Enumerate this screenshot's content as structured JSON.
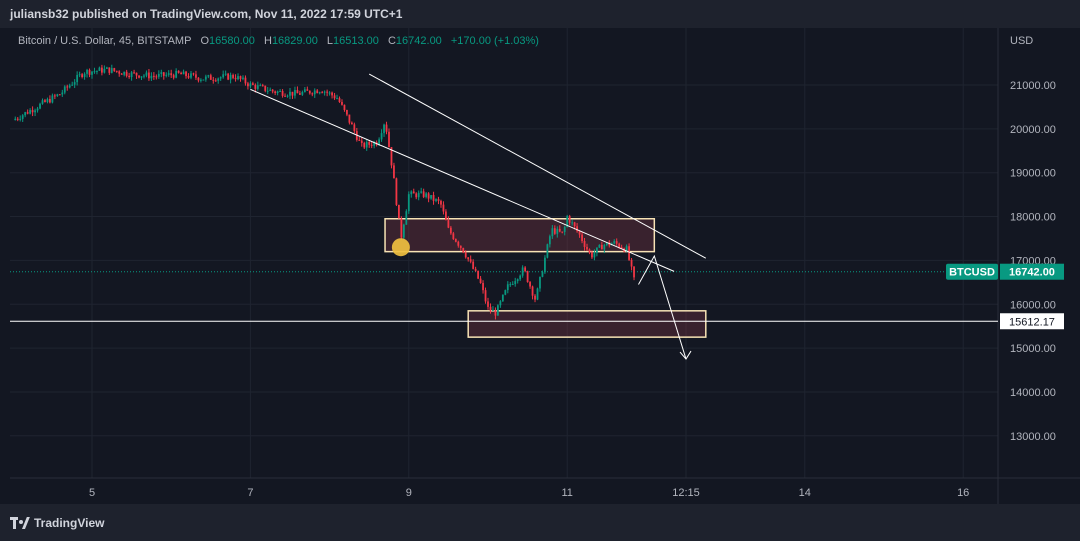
{
  "header": {
    "published_line": "juliansb32 published on TradingView.com, Nov 11, 2022 17:59 UTC+1"
  },
  "legend": {
    "symbol": "Bitcoin / U.S. Dollar, 45, BITSTAMP",
    "o_key": "O",
    "o_val": "16580.00",
    "h_key": "H",
    "h_val": "16829.00",
    "l_key": "L",
    "l_val": "16513.00",
    "c_key": "C",
    "c_val": "16742.00",
    "change": "+170.00 (+1.03%)"
  },
  "axis": {
    "currency": "USD",
    "y_ticks": [
      "21000.00",
      "20000.00",
      "19000.00",
      "18000.00",
      "17000.00",
      "16000.00",
      "15000.00",
      "14000.00",
      "13000.00"
    ],
    "x_ticks": [
      "5",
      "7",
      "9",
      "11",
      "12:15",
      "14",
      "16"
    ]
  },
  "price_tag": {
    "symbol": "BTCUSD",
    "value": "16742.00"
  },
  "level_tag": {
    "value": "15612.17"
  },
  "footer": {
    "brand": "TradingView",
    "logo_icon": "tradingview-logo-icon"
  },
  "colors": {
    "up": "#089981",
    "down": "#f23645",
    "zone_border": "#f7e3b5",
    "marker": "#f0c040",
    "background": "#131722"
  },
  "chart_data": {
    "type": "candlestick",
    "title": "",
    "ylim": [
      12300,
      21800
    ],
    "x_tick_labels": [
      "5",
      "7",
      "9",
      "11",
      "12:15",
      "14",
      "16"
    ],
    "current_price": 16742,
    "horizontal_level": 15612.17,
    "price_path": [
      [
        4.0,
        20200
      ],
      [
        4.3,
        20500
      ],
      [
        4.6,
        20800
      ],
      [
        4.9,
        21300
      ],
      [
        5.2,
        21350
      ],
      [
        5.5,
        21250
      ],
      [
        5.8,
        21200
      ],
      [
        6.1,
        21250
      ],
      [
        6.4,
        21150
      ],
      [
        6.8,
        21200
      ],
      [
        7.0,
        21000
      ],
      [
        7.3,
        20850
      ],
      [
        7.6,
        20800
      ],
      [
        7.9,
        20900
      ],
      [
        8.1,
        20700
      ],
      [
        8.3,
        20000
      ],
      [
        8.4,
        19600
      ],
      [
        8.6,
        19700
      ],
      [
        8.7,
        20200
      ],
      [
        8.8,
        19000
      ],
      [
        8.9,
        17500
      ],
      [
        9.0,
        18500
      ],
      [
        9.2,
        18500
      ],
      [
        9.4,
        18300
      ],
      [
        9.5,
        17700
      ],
      [
        9.7,
        17200
      ],
      [
        9.9,
        16500
      ],
      [
        10.0,
        15900
      ],
      [
        10.1,
        15800
      ],
      [
        10.25,
        16400
      ],
      [
        10.45,
        16800
      ],
      [
        10.6,
        16100
      ],
      [
        10.7,
        16900
      ],
      [
        10.8,
        17700
      ],
      [
        10.95,
        17600
      ],
      [
        11.0,
        18000
      ],
      [
        11.15,
        17600
      ],
      [
        11.3,
        17100
      ],
      [
        11.45,
        17350
      ],
      [
        11.6,
        17400
      ],
      [
        11.75,
        17250
      ],
      [
        11.85,
        16500
      ]
    ],
    "zones": [
      {
        "x": [
          8.7,
          12.1
        ],
        "y": [
          17200,
          17950
        ]
      },
      {
        "x": [
          9.75,
          12.75
        ],
        "y": [
          15250,
          15850
        ]
      }
    ],
    "trendlines": [
      {
        "from": [
          8.5,
          21250
        ],
        "to": [
          12.75,
          17050
        ]
      },
      {
        "from": [
          7.0,
          20900
        ],
        "to": [
          12.35,
          16750
        ]
      }
    ],
    "arrow": {
      "points": [
        [
          11.9,
          16450
        ],
        [
          12.1,
          17100
        ],
        [
          12.5,
          14750
        ]
      ]
    },
    "marker": {
      "x": 8.9,
      "y": 17300
    }
  }
}
